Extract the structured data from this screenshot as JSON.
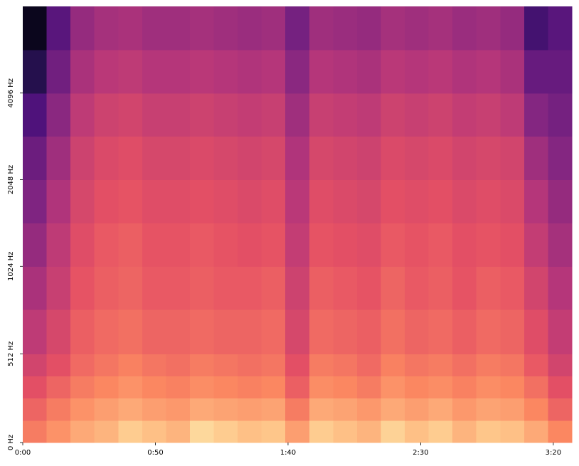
{
  "chart_data": {
    "type": "heatmap",
    "colormap": "magma",
    "zlim": [
      -80,
      0
    ],
    "xlim": [
      0,
      207
    ],
    "xticks": [
      {
        "value": 0,
        "label": "0:00"
      },
      {
        "value": 50,
        "label": "0:50"
      },
      {
        "value": 100,
        "label": "1:40"
      },
      {
        "value": 150,
        "label": "2:30"
      },
      {
        "value": 200,
        "label": "3:20"
      }
    ],
    "ylim": [
      0,
      8192
    ],
    "yscale": "symlog",
    "ybase": 2,
    "ylinthresh": 1000,
    "yticks": [
      {
        "value": 0,
        "label": "0 Hz"
      },
      {
        "value": 512,
        "label": "512 Hz"
      },
      {
        "value": 1024,
        "label": "1024 Hz"
      },
      {
        "value": 2048,
        "label": "2048 Hz"
      },
      {
        "value": 4096,
        "label": "4096 Hz"
      }
    ],
    "xbins": [
      0,
      9,
      18,
      27,
      36,
      45,
      54,
      63,
      72,
      81,
      90,
      99,
      108,
      117,
      126,
      135,
      144,
      153,
      162,
      171,
      180,
      189,
      198,
      207
    ],
    "ybins": [
      0,
      128,
      256,
      384,
      512,
      768,
      1024,
      1448,
      2048,
      2896,
      4096,
      5793,
      8192
    ],
    "z": [
      [
        -22,
        -18,
        -14,
        -12,
        -8,
        -10,
        -12,
        -6,
        -8,
        -10,
        -9,
        -16,
        -8,
        -10,
        -12,
        -7,
        -10,
        -8,
        -12,
        -9,
        -10,
        -14,
        -20
      ],
      [
        -26,
        -22,
        -18,
        -16,
        -14,
        -16,
        -17,
        -14,
        -15,
        -16,
        -15,
        -22,
        -14,
        -15,
        -17,
        -14,
        -16,
        -14,
        -17,
        -15,
        -16,
        -20,
        -26
      ],
      [
        -30,
        -26,
        -22,
        -20,
        -18,
        -20,
        -21,
        -19,
        -20,
        -21,
        -20,
        -27,
        -19,
        -20,
        -22,
        -18,
        -20,
        -19,
        -21,
        -19,
        -20,
        -24,
        -30
      ],
      [
        -34,
        -30,
        -25,
        -23,
        -21,
        -23,
        -24,
        -22,
        -23,
        -24,
        -23,
        -30,
        -22,
        -23,
        -25,
        -21,
        -23,
        -22,
        -24,
        -22,
        -23,
        -28,
        -34
      ],
      [
        -38,
        -33,
        -27,
        -25,
        -24,
        -26,
        -26,
        -25,
        -26,
        -26,
        -25,
        -33,
        -25,
        -26,
        -27,
        -24,
        -26,
        -25,
        -27,
        -25,
        -26,
        -31,
        -37
      ],
      [
        -42,
        -36,
        -29,
        -27,
        -26,
        -28,
        -28,
        -27,
        -28,
        -28,
        -27,
        -35,
        -27,
        -28,
        -29,
        -26,
        -28,
        -27,
        -29,
        -27,
        -28,
        -34,
        -40
      ],
      [
        -46,
        -38,
        -31,
        -28,
        -27,
        -29,
        -29,
        -28,
        -29,
        -30,
        -29,
        -37,
        -29,
        -30,
        -31,
        -28,
        -29,
        -28,
        -30,
        -29,
        -30,
        -37,
        -43
      ],
      [
        -50,
        -41,
        -33,
        -30,
        -29,
        -31,
        -31,
        -30,
        -31,
        -32,
        -31,
        -39,
        -31,
        -32,
        -33,
        -30,
        -31,
        -30,
        -32,
        -31,
        -32,
        -40,
        -46
      ],
      [
        -54,
        -44,
        -35,
        -32,
        -31,
        -33,
        -33,
        -32,
        -33,
        -34,
        -33,
        -41,
        -33,
        -34,
        -35,
        -32,
        -33,
        -32,
        -34,
        -33,
        -34,
        -44,
        -49
      ],
      [
        -60,
        -48,
        -38,
        -35,
        -34,
        -36,
        -36,
        -35,
        -36,
        -37,
        -36,
        -44,
        -36,
        -37,
        -38,
        -35,
        -36,
        -35,
        -37,
        -36,
        -38,
        -49,
        -52
      ],
      [
        -68,
        -53,
        -42,
        -39,
        -38,
        -40,
        -40,
        -39,
        -40,
        -41,
        -40,
        -48,
        -40,
        -41,
        -42,
        -39,
        -40,
        -39,
        -41,
        -40,
        -42,
        -55,
        -55
      ],
      [
        -76,
        -58,
        -46,
        -43,
        -42,
        -44,
        -44,
        -43,
        -44,
        -45,
        -44,
        -52,
        -44,
        -45,
        -46,
        -43,
        -44,
        -43,
        -45,
        -44,
        -46,
        -62,
        -58
      ]
    ]
  }
}
